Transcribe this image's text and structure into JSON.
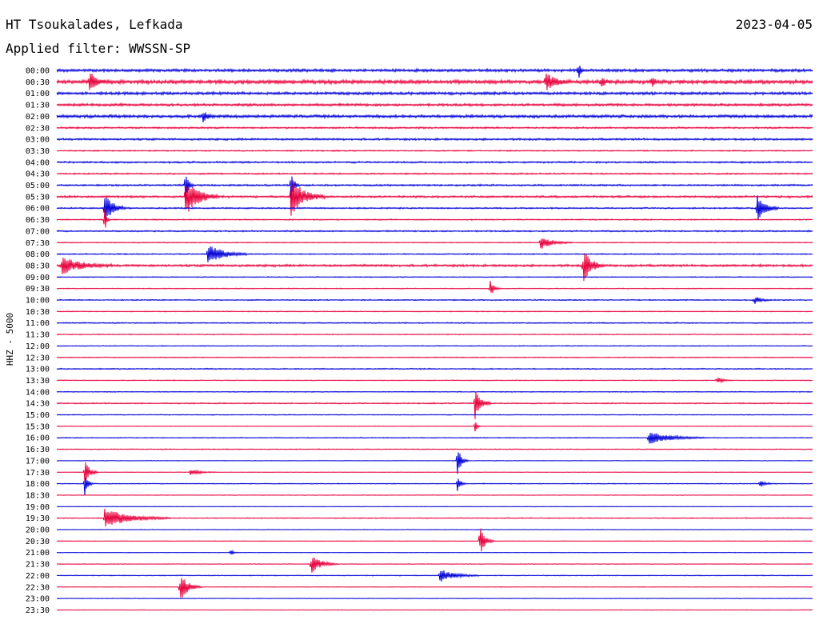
{
  "header": {
    "station_title": "HT Tsoukalades, Lefkada",
    "date": "2023-04-05",
    "filter_label": "Applied filter: WWSSN-SP"
  },
  "chart_data": {
    "type": "line",
    "ylabel": "HHZ - 5000",
    "xlim_minutes": [
      0,
      30
    ],
    "row_labels": [
      "00:00",
      "00:30",
      "01:00",
      "01:30",
      "02:00",
      "02:30",
      "03:00",
      "03:30",
      "04:00",
      "04:30",
      "05:00",
      "05:30",
      "06:00",
      "06:30",
      "07:00",
      "07:30",
      "08:00",
      "08:30",
      "09:00",
      "09:30",
      "10:00",
      "10:30",
      "11:00",
      "11:30",
      "12:00",
      "12:30",
      "13:00",
      "13:30",
      "14:00",
      "14:30",
      "15:00",
      "15:30",
      "16:00",
      "16:30",
      "17:00",
      "17:30",
      "18:00",
      "18:30",
      "19:00",
      "19:30",
      "20:00",
      "20:30",
      "21:00",
      "21:30",
      "22:00",
      "22:30",
      "23:00",
      "23:30"
    ],
    "trace_colors": [
      "#0000d8",
      "#e8003c"
    ],
    "noise_level": [
      0.1,
      0.13,
      0.1,
      0.09,
      0.1,
      0.06,
      0.07,
      0.04,
      0.06,
      0.05,
      0.06,
      0.07,
      0.05,
      0.04,
      0.05,
      0.03,
      0.04,
      0.08,
      0.03,
      0.03,
      0.04,
      0.03,
      0.04,
      0.03,
      0.03,
      0.03,
      0.04,
      0.03,
      0.03,
      0.04,
      0.03,
      0.02,
      0.03,
      0.03,
      0.02,
      0.02,
      0.03,
      0.02,
      0.02,
      0.03,
      0.02,
      0.02,
      0.02,
      0.02,
      0.03,
      0.02,
      0.02,
      0.02
    ],
    "events": [
      {
        "row": 0,
        "minute": 20.7,
        "amp": 0.9,
        "dur": 0.2
      },
      {
        "row": 1,
        "minute": 1.3,
        "amp": 0.9,
        "dur": 0.8
      },
      {
        "row": 1,
        "minute": 19.4,
        "amp": 0.8,
        "dur": 1.0
      },
      {
        "row": 1,
        "minute": 21.6,
        "amp": 0.5,
        "dur": 0.4
      },
      {
        "row": 1,
        "minute": 23.6,
        "amp": 0.5,
        "dur": 0.3
      },
      {
        "row": 4,
        "minute": 5.8,
        "amp": 0.5,
        "dur": 0.5
      },
      {
        "row": 10,
        "minute": 5.1,
        "amp": 1.5,
        "dur": 0.3
      },
      {
        "row": 10,
        "minute": 9.3,
        "amp": 1.3,
        "dur": 0.3
      },
      {
        "row": 11,
        "minute": 5.1,
        "amp": 1.8,
        "dur": 1.3
      },
      {
        "row": 11,
        "minute": 9.3,
        "amp": 1.8,
        "dur": 1.3
      },
      {
        "row": 12,
        "minute": 1.9,
        "amp": 1.6,
        "dur": 0.8
      },
      {
        "row": 12,
        "minute": 27.8,
        "amp": 1.3,
        "dur": 0.8
      },
      {
        "row": 13,
        "minute": 1.9,
        "amp": 1.2,
        "dur": 0.2
      },
      {
        "row": 15,
        "minute": 19.2,
        "amp": 0.6,
        "dur": 1.2
      },
      {
        "row": 16,
        "minute": 6.0,
        "amp": 1.0,
        "dur": 1.5
      },
      {
        "row": 17,
        "minute": 0.2,
        "amp": 0.8,
        "dur": 2.0
      },
      {
        "row": 17,
        "minute": 20.9,
        "amp": 1.6,
        "dur": 0.8
      },
      {
        "row": 19,
        "minute": 17.2,
        "amp": 0.8,
        "dur": 0.4
      },
      {
        "row": 20,
        "minute": 27.7,
        "amp": 0.4,
        "dur": 0.6
      },
      {
        "row": 29,
        "minute": 16.6,
        "amp": 1.5,
        "dur": 0.6
      },
      {
        "row": 31,
        "minute": 16.6,
        "amp": 0.7,
        "dur": 0.2
      },
      {
        "row": 27,
        "minute": 26.2,
        "amp": 0.3,
        "dur": 0.6
      },
      {
        "row": 32,
        "minute": 23.5,
        "amp": 0.6,
        "dur": 2.2
      },
      {
        "row": 34,
        "minute": 15.9,
        "amp": 1.4,
        "dur": 0.4
      },
      {
        "row": 35,
        "minute": 1.1,
        "amp": 1.2,
        "dur": 0.5
      },
      {
        "row": 35,
        "minute": 5.3,
        "amp": 0.3,
        "dur": 1.0
      },
      {
        "row": 36,
        "minute": 1.1,
        "amp": 1.4,
        "dur": 0.3
      },
      {
        "row": 36,
        "minute": 15.9,
        "amp": 0.8,
        "dur": 0.3
      },
      {
        "row": 36,
        "minute": 27.9,
        "amp": 0.3,
        "dur": 0.6
      },
      {
        "row": 39,
        "minute": 1.9,
        "amp": 0.9,
        "dur": 2.6
      },
      {
        "row": 41,
        "minute": 16.8,
        "amp": 1.6,
        "dur": 0.5
      },
      {
        "row": 42,
        "minute": 6.9,
        "amp": 0.3,
        "dur": 0.3
      },
      {
        "row": 43,
        "minute": 10.1,
        "amp": 0.9,
        "dur": 1.0
      },
      {
        "row": 44,
        "minute": 15.2,
        "amp": 0.6,
        "dur": 1.5
      },
      {
        "row": 45,
        "minute": 4.9,
        "amp": 1.3,
        "dur": 0.8
      }
    ]
  }
}
